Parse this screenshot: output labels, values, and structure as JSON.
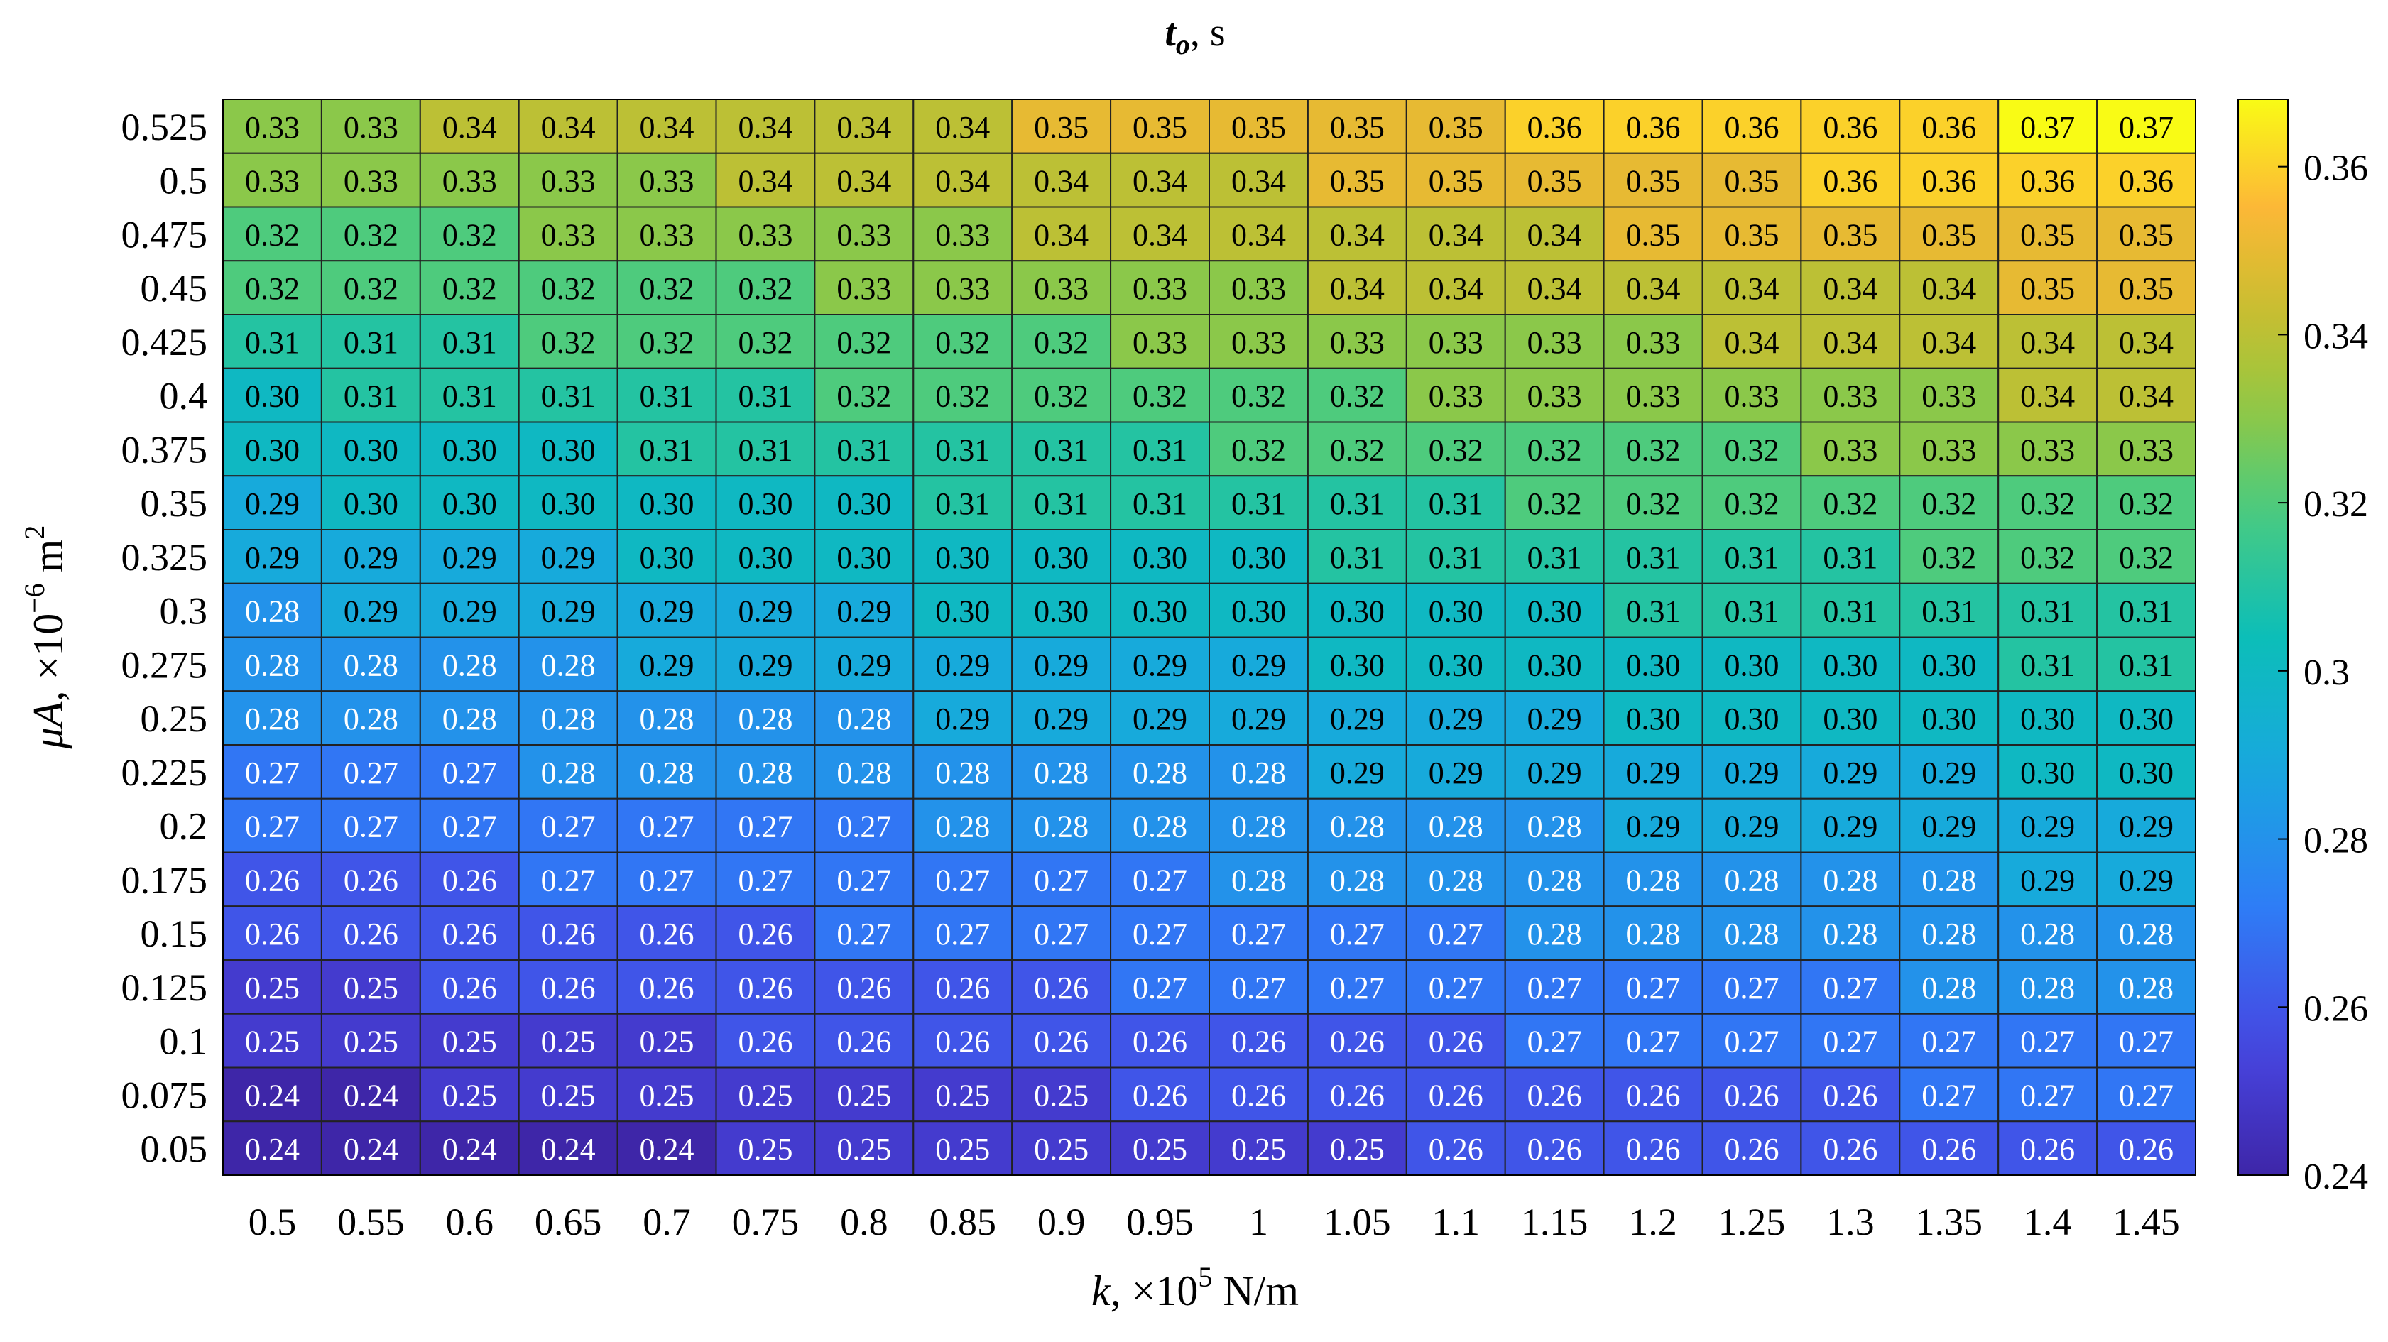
{
  "chart_data": {
    "type": "heatmap",
    "title": {
      "main": "t",
      "sub": "o",
      "unit": ", s"
    },
    "xlabel": {
      "var": "k",
      "sep": ", ×10",
      "exp": "5",
      "unit": " N/m"
    },
    "ylabel": {
      "var": "μA",
      "sep": ", ×10",
      "exp": "−6",
      "unit": " m",
      "unit_exp": "2"
    },
    "x_categories": [
      "0.5",
      "0.55",
      "0.6",
      "0.65",
      "0.7",
      "0.75",
      "0.8",
      "0.85",
      "0.9",
      "0.95",
      "1",
      "1.05",
      "1.1",
      "1.15",
      "1.2",
      "1.25",
      "1.3",
      "1.35",
      "1.4",
      "1.45"
    ],
    "y_categories": [
      "0.525",
      "0.5",
      "0.475",
      "0.45",
      "0.425",
      "0.4",
      "0.375",
      "0.35",
      "0.325",
      "0.3",
      "0.275",
      "0.25",
      "0.225",
      "0.2",
      "0.175",
      "0.15",
      "0.125",
      "0.1",
      "0.075",
      "0.05"
    ],
    "values": [
      [
        0.33,
        0.33,
        0.34,
        0.34,
        0.34,
        0.34,
        0.34,
        0.34,
        0.35,
        0.35,
        0.35,
        0.35,
        0.35,
        0.36,
        0.36,
        0.36,
        0.36,
        0.36,
        0.37,
        0.37
      ],
      [
        0.33,
        0.33,
        0.33,
        0.33,
        0.33,
        0.34,
        0.34,
        0.34,
        0.34,
        0.34,
        0.34,
        0.35,
        0.35,
        0.35,
        0.35,
        0.35,
        0.36,
        0.36,
        0.36,
        0.36
      ],
      [
        0.32,
        0.32,
        0.32,
        0.33,
        0.33,
        0.33,
        0.33,
        0.33,
        0.34,
        0.34,
        0.34,
        0.34,
        0.34,
        0.34,
        0.35,
        0.35,
        0.35,
        0.35,
        0.35,
        0.35
      ],
      [
        0.32,
        0.32,
        0.32,
        0.32,
        0.32,
        0.32,
        0.33,
        0.33,
        0.33,
        0.33,
        0.33,
        0.34,
        0.34,
        0.34,
        0.34,
        0.34,
        0.34,
        0.34,
        0.35,
        0.35
      ],
      [
        0.31,
        0.31,
        0.31,
        0.32,
        0.32,
        0.32,
        0.32,
        0.32,
        0.32,
        0.33,
        0.33,
        0.33,
        0.33,
        0.33,
        0.33,
        0.34,
        0.34,
        0.34,
        0.34,
        0.34
      ],
      [
        0.3,
        0.31,
        0.31,
        0.31,
        0.31,
        0.31,
        0.32,
        0.32,
        0.32,
        0.32,
        0.32,
        0.32,
        0.33,
        0.33,
        0.33,
        0.33,
        0.33,
        0.33,
        0.34,
        0.34
      ],
      [
        0.3,
        0.3,
        0.3,
        0.3,
        0.31,
        0.31,
        0.31,
        0.31,
        0.31,
        0.31,
        0.32,
        0.32,
        0.32,
        0.32,
        0.32,
        0.32,
        0.33,
        0.33,
        0.33,
        0.33
      ],
      [
        0.29,
        0.3,
        0.3,
        0.3,
        0.3,
        0.3,
        0.3,
        0.31,
        0.31,
        0.31,
        0.31,
        0.31,
        0.31,
        0.32,
        0.32,
        0.32,
        0.32,
        0.32,
        0.32,
        0.32
      ],
      [
        0.29,
        0.29,
        0.29,
        0.29,
        0.3,
        0.3,
        0.3,
        0.3,
        0.3,
        0.3,
        0.3,
        0.31,
        0.31,
        0.31,
        0.31,
        0.31,
        0.31,
        0.32,
        0.32,
        0.32
      ],
      [
        0.28,
        0.29,
        0.29,
        0.29,
        0.29,
        0.29,
        0.29,
        0.3,
        0.3,
        0.3,
        0.3,
        0.3,
        0.3,
        0.3,
        0.31,
        0.31,
        0.31,
        0.31,
        0.31,
        0.31
      ],
      [
        0.28,
        0.28,
        0.28,
        0.28,
        0.29,
        0.29,
        0.29,
        0.29,
        0.29,
        0.29,
        0.29,
        0.3,
        0.3,
        0.3,
        0.3,
        0.3,
        0.3,
        0.3,
        0.31,
        0.31
      ],
      [
        0.28,
        0.28,
        0.28,
        0.28,
        0.28,
        0.28,
        0.28,
        0.29,
        0.29,
        0.29,
        0.29,
        0.29,
        0.29,
        0.29,
        0.3,
        0.3,
        0.3,
        0.3,
        0.3,
        0.3
      ],
      [
        0.27,
        0.27,
        0.27,
        0.28,
        0.28,
        0.28,
        0.28,
        0.28,
        0.28,
        0.28,
        0.28,
        0.29,
        0.29,
        0.29,
        0.29,
        0.29,
        0.29,
        0.29,
        0.3,
        0.3
      ],
      [
        0.27,
        0.27,
        0.27,
        0.27,
        0.27,
        0.27,
        0.27,
        0.28,
        0.28,
        0.28,
        0.28,
        0.28,
        0.28,
        0.28,
        0.29,
        0.29,
        0.29,
        0.29,
        0.29,
        0.29
      ],
      [
        0.26,
        0.26,
        0.26,
        0.27,
        0.27,
        0.27,
        0.27,
        0.27,
        0.27,
        0.27,
        0.28,
        0.28,
        0.28,
        0.28,
        0.28,
        0.28,
        0.28,
        0.28,
        0.29,
        0.29
      ],
      [
        0.26,
        0.26,
        0.26,
        0.26,
        0.26,
        0.26,
        0.27,
        0.27,
        0.27,
        0.27,
        0.27,
        0.27,
        0.27,
        0.28,
        0.28,
        0.28,
        0.28,
        0.28,
        0.28,
        0.28
      ],
      [
        0.25,
        0.25,
        0.26,
        0.26,
        0.26,
        0.26,
        0.26,
        0.26,
        0.26,
        0.27,
        0.27,
        0.27,
        0.27,
        0.27,
        0.27,
        0.27,
        0.27,
        0.28,
        0.28,
        0.28
      ],
      [
        0.25,
        0.25,
        0.25,
        0.25,
        0.25,
        0.26,
        0.26,
        0.26,
        0.26,
        0.26,
        0.26,
        0.26,
        0.26,
        0.27,
        0.27,
        0.27,
        0.27,
        0.27,
        0.27,
        0.27
      ],
      [
        0.24,
        0.24,
        0.25,
        0.25,
        0.25,
        0.25,
        0.25,
        0.25,
        0.25,
        0.26,
        0.26,
        0.26,
        0.26,
        0.26,
        0.26,
        0.26,
        0.26,
        0.27,
        0.27,
        0.27
      ],
      [
        0.24,
        0.24,
        0.24,
        0.24,
        0.24,
        0.25,
        0.25,
        0.25,
        0.25,
        0.25,
        0.25,
        0.25,
        0.26,
        0.26,
        0.26,
        0.26,
        0.26,
        0.26,
        0.26,
        0.26
      ]
    ],
    "colorbar": {
      "colormap": "parula",
      "range": [
        0.24,
        0.368
      ],
      "ticks": [
        0.24,
        0.26,
        0.28,
        0.3,
        0.32,
        0.34,
        0.36
      ],
      "tick_labels": [
        "0.24",
        "0.26",
        "0.28",
        "0.3",
        "0.32",
        "0.34",
        "0.36"
      ]
    },
    "grid": true,
    "cell_labels": true
  }
}
